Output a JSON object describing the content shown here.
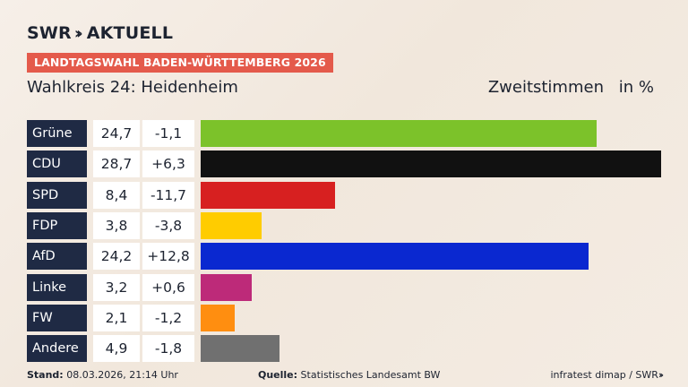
{
  "header": {
    "brand_swr": "SWR",
    "brand_aktuell": "AKTUELL",
    "banner": "LANDTAGSWAHL BADEN-WÜRTTEMBERG 2026",
    "subtitle": "Wahlkreis 24: Heidenheim",
    "measure_label": "Zweitstimmen",
    "unit": "in %"
  },
  "chart_data": {
    "type": "bar",
    "orientation": "horizontal",
    "categories": [
      "Grüne",
      "CDU",
      "SPD",
      "FDP",
      "AfD",
      "Linke",
      "FW",
      "Andere"
    ],
    "values": [
      24.7,
      28.7,
      8.4,
      3.8,
      24.2,
      3.2,
      2.1,
      4.9
    ],
    "value_labels": [
      "24,7",
      "28,7",
      "8,4",
      "3,8",
      "24,2",
      "3,2",
      "2,1",
      "4,9"
    ],
    "change_labels": [
      "-1,1",
      "+6,3",
      "-11,7",
      "-3,8",
      "+12,8",
      "+0,6",
      "-1,2",
      "-1,8"
    ],
    "colors": [
      "#7cc22a",
      "#111111",
      "#d72020",
      "#ffcc00",
      "#0a28d0",
      "#bd2a79",
      "#ff8e10",
      "#707070"
    ],
    "xlim": [
      0,
      28.7
    ],
    "grid": false,
    "legend": "none"
  },
  "footer": {
    "stand_label": "Stand:",
    "stand_value": "08.03.2026, 21:14 Uhr",
    "source_label": "Quelle:",
    "source_value": "Statistisches Landesamt BW",
    "credit": "infratest dimap / SWR"
  }
}
